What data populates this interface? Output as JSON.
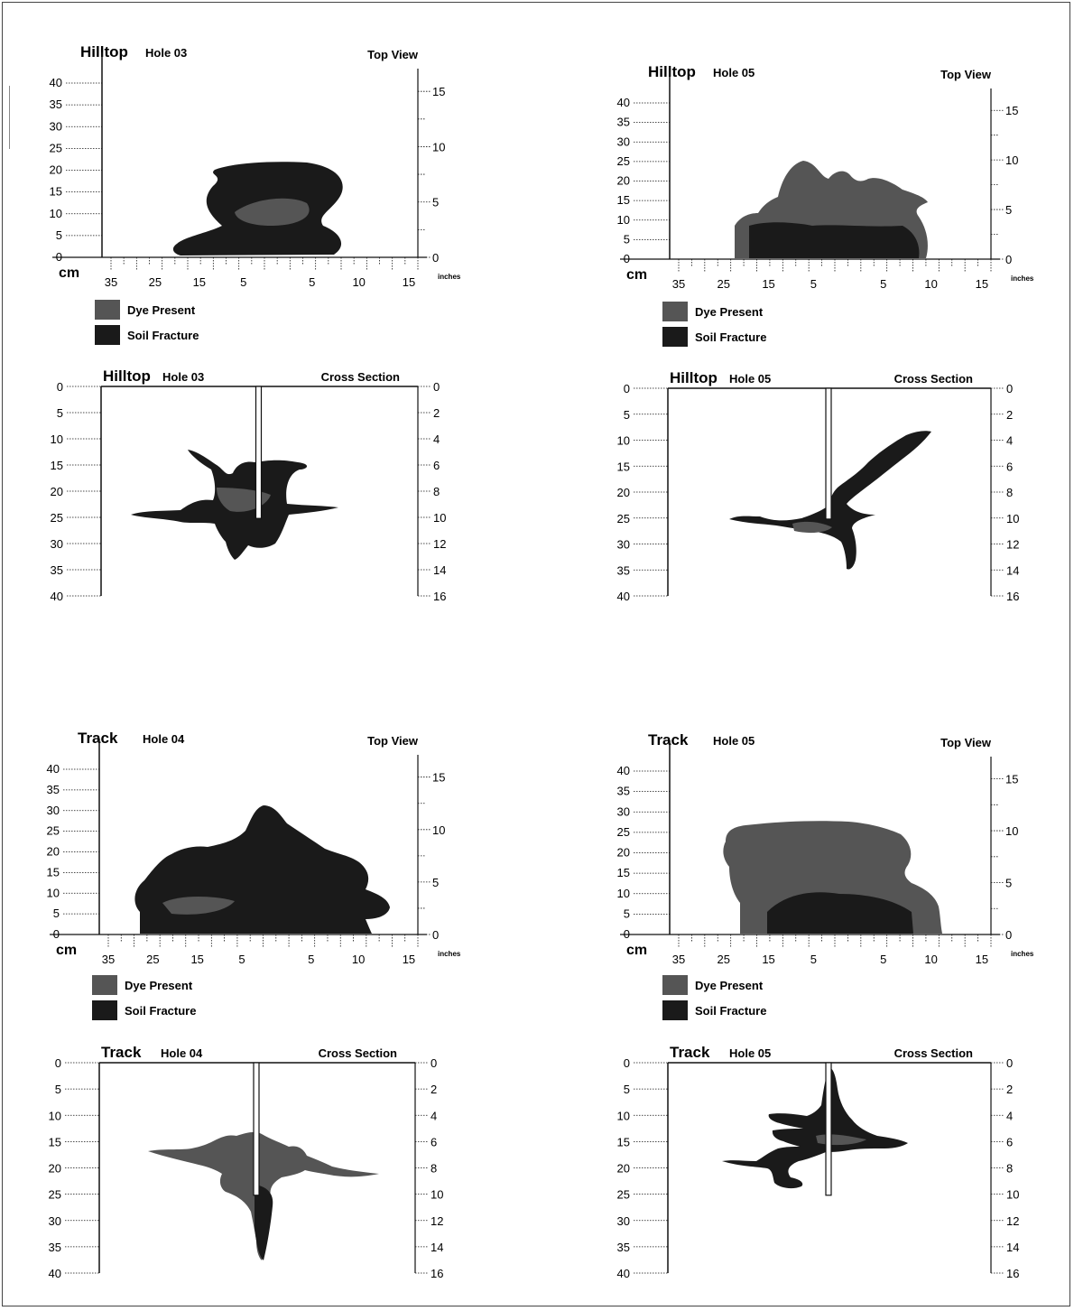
{
  "units": {
    "cm": "cm",
    "inches": "inches"
  },
  "legend": {
    "dye_present": "Dye Present",
    "soil_fracture": "Soil Fracture"
  },
  "colors": {
    "dye_present": "#555555",
    "soil_fracture": "#1a1a1a"
  },
  "panels": [
    {
      "top_view": {
        "title_main": "Hilltop",
        "title_sub": "Hole 03",
        "label": "Top View"
      },
      "cross_section": {
        "title_main": "Hilltop",
        "title_sub": "Hole 03",
        "label": "Cross Section"
      }
    },
    {
      "top_view": {
        "title_main": "Hilltop",
        "title_sub": "Hole 05",
        "label": "Top View"
      },
      "cross_section": {
        "title_main": "Hilltop",
        "title_sub": "Hole 05",
        "label": "Cross Section"
      }
    },
    {
      "top_view": {
        "title_main": "Track",
        "title_sub": "Hole 04",
        "label": "Top View"
      },
      "cross_section": {
        "title_main": "Track",
        "title_sub": "Hole 04",
        "label": "Cross Section"
      }
    },
    {
      "top_view": {
        "title_main": "Track",
        "title_sub": "Hole 05",
        "label": "Top View"
      },
      "cross_section": {
        "title_main": "Track",
        "title_sub": "Hole 05",
        "label": "Cross Section"
      }
    }
  ],
  "axes": {
    "top_left_cm": [
      "0",
      "5",
      "10",
      "15",
      "20",
      "25",
      "30",
      "35",
      "40"
    ],
    "top_right_in": [
      "0",
      "5",
      "10",
      "15"
    ],
    "top_bottom_cm": [
      "35",
      "25",
      "15",
      "5",
      "5",
      "10",
      "15"
    ],
    "cross_left_cm": [
      "0",
      "5",
      "10",
      "15",
      "20",
      "25",
      "30",
      "35",
      "40"
    ],
    "cross_right_in": [
      "0",
      "2",
      "4",
      "6",
      "8",
      "10",
      "12",
      "14",
      "16"
    ]
  }
}
